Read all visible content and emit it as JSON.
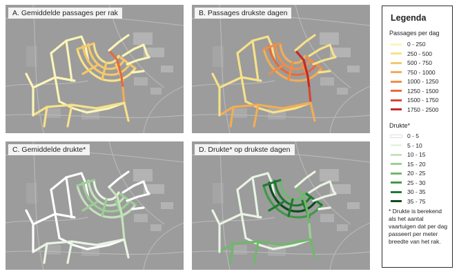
{
  "panels": [
    {
      "id": "A",
      "title": "A. Gemiddelde passages per rak",
      "style": "A"
    },
    {
      "id": "B",
      "title": "B. Passages drukste dagen",
      "style": "B"
    },
    {
      "id": "C",
      "title": "C. Gemiddelde drukte*",
      "style": "C"
    },
    {
      "id": "D",
      "title": "D. Drukte* op drukste dagen",
      "style": "D"
    }
  ],
  "legend": {
    "title": "Legenda",
    "passages_title": "Passages per dag",
    "passages": [
      {
        "label": "0 - 250",
        "color": "#fbf5b8"
      },
      {
        "label": "250 - 500",
        "color": "#f7e189"
      },
      {
        "label": "500 - 750",
        "color": "#f5c86a"
      },
      {
        "label": "750 - 1000",
        "color": "#f2ad56"
      },
      {
        "label": "1000 - 1250",
        "color": "#ee8e48"
      },
      {
        "label": "1250 - 1500",
        "color": "#e66a3c"
      },
      {
        "label": "1500 - 1750",
        "color": "#d84532"
      },
      {
        "label": "1750 - 2500",
        "color": "#c22a26"
      }
    ],
    "drukte_title": "Drukte*",
    "drukte": [
      {
        "label": "0 - 5",
        "color": "#ffffff"
      },
      {
        "label": "5 - 10",
        "color": "#e9f4e4"
      },
      {
        "label": "10 - 15",
        "color": "#c5e2bd"
      },
      {
        "label": "15 - 20",
        "color": "#9ccf95"
      },
      {
        "label": "20 - 25",
        "color": "#6fb86b"
      },
      {
        "label": "25 - 30",
        "color": "#3f9a46"
      },
      {
        "label": "30 - 35",
        "color": "#1e7a31"
      },
      {
        "label": "35 - 75",
        "color": "#0a4d1d"
      }
    ],
    "note": "* Drukte is berekend als het aantal vaartuigen dat per dag passeert per meter breedte van het rak."
  }
}
